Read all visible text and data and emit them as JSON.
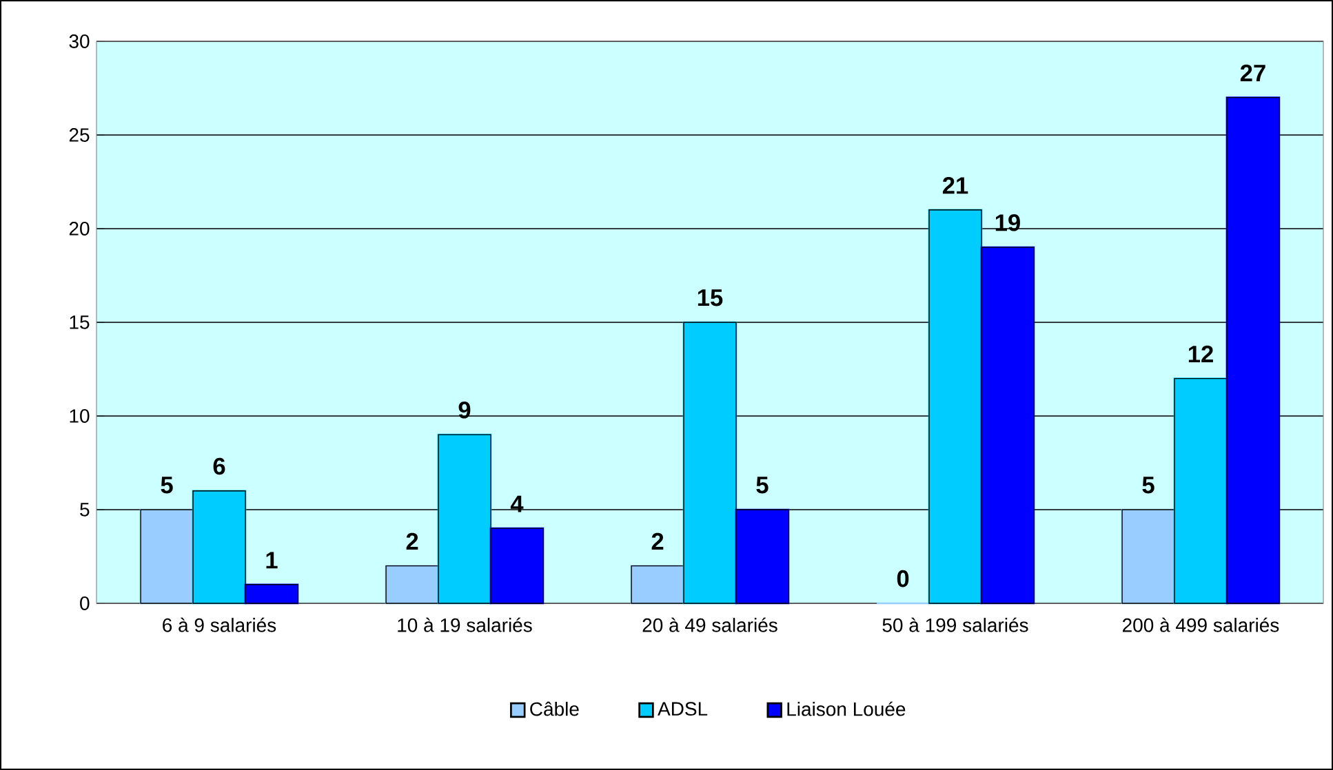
{
  "chart_data": {
    "type": "bar",
    "categories": [
      "6 à 9 salariés",
      "10 à 19 salariés",
      "20 à 49 salariés",
      "50 à 199 salariés",
      "200 à 499 salariés"
    ],
    "series": [
      {
        "name": "Câble",
        "color": "#99ccff",
        "values": [
          5,
          2,
          2,
          0,
          5
        ]
      },
      {
        "name": "ADSL",
        "color": "#00ccff",
        "values": [
          6,
          9,
          15,
          21,
          12
        ]
      },
      {
        "name": "Liaison Louée",
        "color": "#0000ff",
        "values": [
          1,
          4,
          5,
          19,
          27
        ]
      }
    ],
    "ylim": [
      0,
      30
    ],
    "yticks": [
      0,
      5,
      10,
      15,
      20,
      25,
      30
    ],
    "grid": "y",
    "legend": "bottom",
    "data_labels": true
  }
}
